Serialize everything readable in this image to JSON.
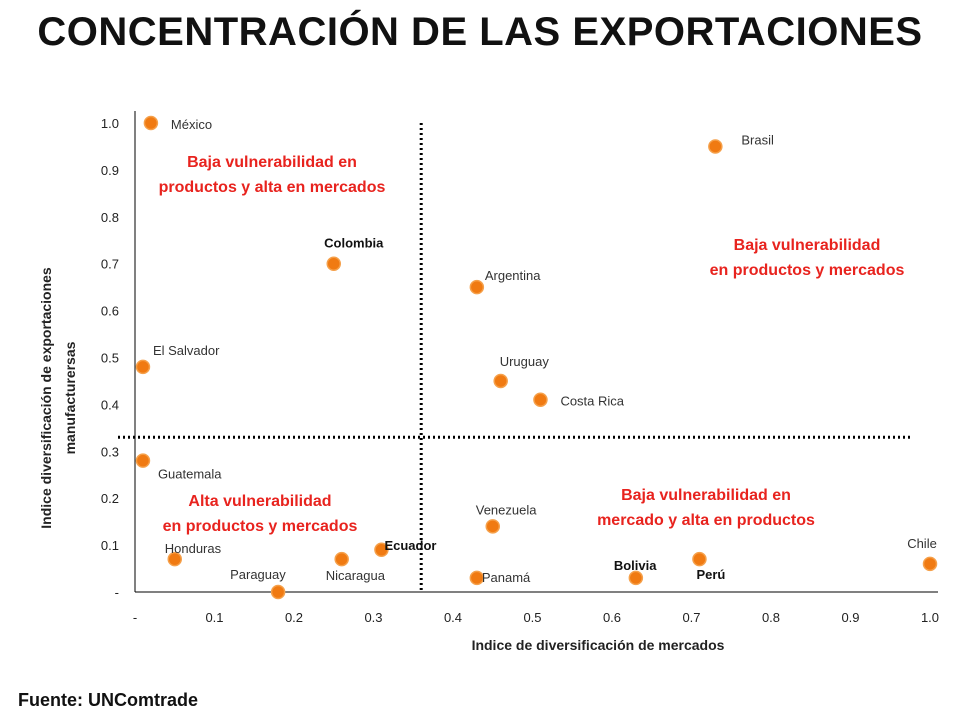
{
  "page": {
    "title": "CONCENTRACIÓN DE LAS EXPORTACIONES",
    "source": "Fuente: UNComtrade"
  },
  "colors": {
    "marker": "#f07a12",
    "marker_stroke": "#f5a04a",
    "quadrant_text": "#e8231e",
    "axis": "#000000"
  },
  "chart_data": {
    "type": "scatter",
    "title": "",
    "xlabel": "Indice de diversificación de mercados",
    "ylabel_lines": [
      "Indice diversificación de exportaciones",
      "manufacturersas"
    ],
    "xlim": [
      0,
      1.0
    ],
    "ylim": [
      0,
      1.0
    ],
    "x_ticks": [
      "-",
      "0.1",
      "0.2",
      "0.3",
      "0.4",
      "0.5",
      "0.6",
      "0.7",
      "0.8",
      "0.9",
      "1.0"
    ],
    "y_ticks": [
      "-",
      "0.1",
      "0.2",
      "0.3",
      "0.4",
      "0.5",
      "0.6",
      "0.7",
      "0.8",
      "0.9",
      "1.0"
    ],
    "threshold_x": 0.36,
    "threshold_y": 0.33,
    "grid": false,
    "points": [
      {
        "label": "México",
        "x": 0.02,
        "y": 1.0,
        "bold": false
      },
      {
        "label": "Brasil",
        "x": 0.73,
        "y": 0.95,
        "bold": false
      },
      {
        "label": "Colombia",
        "x": 0.25,
        "y": 0.7,
        "bold": true
      },
      {
        "label": "Argentina",
        "x": 0.43,
        "y": 0.65,
        "bold": false
      },
      {
        "label": "El Salvador",
        "x": 0.01,
        "y": 0.48,
        "bold": false
      },
      {
        "label": "Uruguay",
        "x": 0.46,
        "y": 0.45,
        "bold": false
      },
      {
        "label": "Costa Rica",
        "x": 0.51,
        "y": 0.41,
        "bold": false
      },
      {
        "label": "Guatemala",
        "x": 0.01,
        "y": 0.28,
        "bold": false
      },
      {
        "label": "Venezuela",
        "x": 0.45,
        "y": 0.14,
        "bold": false
      },
      {
        "label": "Ecuador",
        "x": 0.31,
        "y": 0.09,
        "bold": true
      },
      {
        "label": "Honduras",
        "x": 0.05,
        "y": 0.07,
        "bold": false
      },
      {
        "label": "Nicaragua",
        "x": 0.26,
        "y": 0.07,
        "bold": false
      },
      {
        "label": "Perú",
        "x": 0.71,
        "y": 0.07,
        "bold": true
      },
      {
        "label": "Chile",
        "x": 1.0,
        "y": 0.06,
        "bold": false
      },
      {
        "label": "Panamá",
        "x": 0.43,
        "y": 0.03,
        "bold": false
      },
      {
        "label": "Bolivia",
        "x": 0.63,
        "y": 0.03,
        "bold": true
      },
      {
        "label": "Paraguay",
        "x": 0.18,
        "y": 0.0,
        "bold": false
      }
    ],
    "quadrant_annotations": [
      {
        "lines": [
          "Baja vulnerabilidad en",
          "productos y alta en mercados"
        ]
      },
      {
        "lines": [
          "Baja vulnerabilidad",
          "en productos y mercados"
        ]
      },
      {
        "lines": [
          "Alta vulnerabilidad",
          "en productos y mercados"
        ]
      },
      {
        "lines": [
          "Baja vulnerabilidad en",
          "mercado y alta en productos"
        ]
      }
    ]
  }
}
